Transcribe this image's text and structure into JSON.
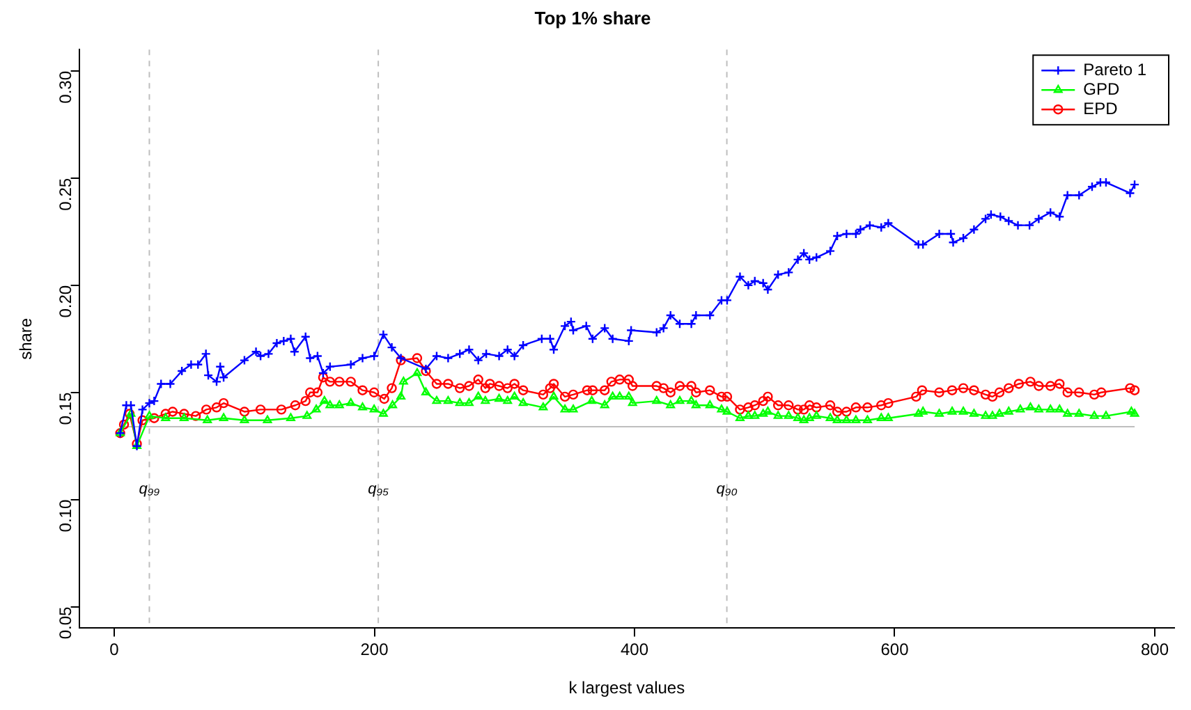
{
  "chart_data": {
    "type": "line",
    "title": "Top 1% share",
    "xlabel": "k largest values",
    "ylabel": "share",
    "xlim": [
      -27,
      815
    ],
    "xticks": [
      0,
      200,
      400,
      600,
      800
    ],
    "ylim": [
      0.04,
      0.31
    ],
    "yticks": [
      {
        "value": 0.05,
        "label": "0.05"
      },
      {
        "value": 0.1,
        "label": "0.10"
      },
      {
        "value": 0.15,
        "label": "0.15"
      },
      {
        "value": 0.2,
        "label": "0.20"
      },
      {
        "value": 0.25,
        "label": "0.25"
      },
      {
        "value": 0.3,
        "label": "0.30"
      }
    ],
    "grid": false,
    "legend": "top right",
    "ref_lines": [
      {
        "axis": "y",
        "value": 0.134,
        "color": "#bebebe",
        "line_style": "solid"
      },
      {
        "axis": "x",
        "value": 27,
        "label": "q₉₉",
        "color": "#bebebe",
        "line_style": "dashed"
      },
      {
        "axis": "x",
        "value": 203,
        "label": "q₉₅",
        "color": "#bebebe",
        "line_style": "dashed"
      },
      {
        "axis": "x",
        "value": 471,
        "label": "q₉₀",
        "color": "#bebebe",
        "line_style": "dashed"
      }
    ],
    "series": [
      {
        "name": "Pareto 1",
        "color": "#0000ff",
        "marker": "cross",
        "x": [
          4.6,
          9.3,
          12.8,
          17.4,
          21.7,
          27,
          30.7,
          36,
          43.1,
          52,
          59.1,
          64.4,
          70.5,
          72.3,
          78.7,
          81.5,
          84.1,
          100.1,
          109,
          112.5,
          118.6,
          125,
          130.3,
          135.7,
          138.6,
          147.1,
          150.6,
          156.3,
          160.6,
          165.9,
          181.9,
          190.9,
          199.8,
          206.9,
          213.4,
          220.4,
          239.6,
          247.9,
          256.7,
          265.7,
          272.8,
          279.9,
          286,
          295.9,
          302.4,
          307.7,
          314.4,
          328.7,
          335.1,
          337.9,
          346.5,
          351.2,
          352.9,
          362.9,
          367.8,
          377.1,
          383.2,
          395.6,
          397.4,
          417,
          422.3,
          427.7,
          434.8,
          443.7,
          447.3,
          458,
          466.9,
          471.2,
          481.1,
          487.5,
          492.5,
          498.9,
          502.5,
          510.4,
          518.5,
          525.6,
          530.2,
          534.5,
          539.9,
          550.5,
          555.9,
          563,
          570.2,
          573.7,
          580.9,
          589.7,
          595.1,
          618.3,
          621.8,
          634.3,
          643.2,
          645,
          652.8,
          661,
          669.9,
          674.1,
          681.3,
          687.7,
          694.8,
          703.7,
          710.8,
          719.8,
          726.8,
          732.9,
          741.8,
          751.8,
          758.2,
          762.5,
          781,
          784.5
        ],
        "values": [
          0.131,
          0.144,
          0.144,
          0.125,
          0.142,
          0.145,
          0.146,
          0.154,
          0.154,
          0.16,
          0.163,
          0.163,
          0.168,
          0.158,
          0.155,
          0.162,
          0.157,
          0.165,
          0.169,
          0.167,
          0.168,
          0.173,
          0.174,
          0.175,
          0.169,
          0.176,
          0.166,
          0.167,
          0.159,
          0.162,
          0.163,
          0.166,
          0.167,
          0.177,
          0.171,
          0.166,
          0.161,
          0.167,
          0.166,
          0.168,
          0.17,
          0.165,
          0.168,
          0.167,
          0.17,
          0.167,
          0.172,
          0.175,
          0.175,
          0.17,
          0.181,
          0.183,
          0.179,
          0.181,
          0.175,
          0.18,
          0.175,
          0.174,
          0.179,
          0.178,
          0.18,
          0.186,
          0.182,
          0.182,
          0.186,
          0.186,
          0.193,
          0.193,
          0.204,
          0.2,
          0.202,
          0.201,
          0.198,
          0.205,
          0.206,
          0.212,
          0.215,
          0.212,
          0.213,
          0.216,
          0.223,
          0.224,
          0.224,
          0.226,
          0.228,
          0.227,
          0.229,
          0.219,
          0.219,
          0.224,
          0.224,
          0.22,
          0.222,
          0.226,
          0.231,
          0.233,
          0.232,
          0.23,
          0.228,
          0.228,
          0.231,
          0.234,
          0.232,
          0.242,
          0.242,
          0.246,
          0.248,
          0.248,
          0.243,
          0.247
        ]
      },
      {
        "name": "GPD",
        "color": "#00ff00",
        "marker": "triangle",
        "x": [
          4.6,
          12.8,
          17.4,
          27,
          39.5,
          53.7,
          71.6,
          84.1,
          100.1,
          117.8,
          135.7,
          148.2,
          155.3,
          161.6,
          165.9,
          173.1,
          181.9,
          190.9,
          199.8,
          206.9,
          214,
          220.4,
          222.4,
          232.9,
          239.6,
          247.9,
          256.7,
          265.7,
          272.8,
          279.9,
          285.3,
          295.9,
          302.4,
          307.7,
          314.4,
          329.8,
          337.9,
          346.5,
          352.9,
          367.1,
          377.1,
          383.2,
          388.6,
          395.6,
          398.5,
          417,
          427.7,
          434.8,
          443.7,
          447.3,
          458,
          466.9,
          471.2,
          481.1,
          487.5,
          492.5,
          498.9,
          502.5,
          510.4,
          518.5,
          525.6,
          530.2,
          534.5,
          539.9,
          550.5,
          555.9,
          563,
          570.2,
          579.1,
          589.7,
          595.1,
          618.3,
          621.8,
          634.3,
          644.2,
          652.8,
          661,
          669.9,
          675.2,
          680.6,
          687.7,
          696.6,
          704.4,
          710.8,
          719.8,
          726.8,
          732.9,
          741.8,
          753.5,
          762.5,
          782,
          784.5
        ],
        "values": [
          0.131,
          0.14,
          0.125,
          0.139,
          0.138,
          0.138,
          0.137,
          0.138,
          0.137,
          0.137,
          0.138,
          0.139,
          0.142,
          0.146,
          0.144,
          0.144,
          0.145,
          0.143,
          0.142,
          0.14,
          0.144,
          0.148,
          0.155,
          0.159,
          0.15,
          0.146,
          0.146,
          0.145,
          0.145,
          0.148,
          0.146,
          0.147,
          0.146,
          0.148,
          0.145,
          0.143,
          0.148,
          0.142,
          0.142,
          0.146,
          0.144,
          0.148,
          0.148,
          0.148,
          0.145,
          0.146,
          0.144,
          0.146,
          0.146,
          0.144,
          0.144,
          0.142,
          0.141,
          0.138,
          0.139,
          0.139,
          0.14,
          0.141,
          0.139,
          0.139,
          0.138,
          0.137,
          0.138,
          0.139,
          0.138,
          0.137,
          0.137,
          0.137,
          0.137,
          0.138,
          0.138,
          0.14,
          0.141,
          0.14,
          0.141,
          0.141,
          0.14,
          0.139,
          0.139,
          0.14,
          0.141,
          0.142,
          0.143,
          0.142,
          0.142,
          0.142,
          0.14,
          0.14,
          0.139,
          0.139,
          0.141,
          0.14
        ]
      },
      {
        "name": "EPD",
        "color": "#ff0000",
        "marker": "circle",
        "x": [
          4.6,
          7.5,
          11.8,
          17.4,
          21.7,
          30.7,
          39.5,
          44.9,
          53.7,
          62.7,
          70.8,
          78.7,
          84.1,
          100.1,
          112.5,
          128.5,
          139.2,
          147.1,
          150.6,
          156.3,
          160.6,
          165.9,
          173.1,
          181.9,
          190.9,
          199.8,
          207.6,
          213.4,
          220.4,
          232.9,
          239.6,
          247.9,
          256.7,
          265.7,
          272.8,
          279.9,
          285.3,
          288.8,
          295.9,
          302.4,
          307.7,
          314.4,
          329.8,
          335.1,
          337.9,
          346.5,
          352.9,
          363.6,
          367.8,
          377.1,
          382.2,
          388.6,
          395.6,
          398.5,
          417,
          422.3,
          427.7,
          434.8,
          443.7,
          447.3,
          458,
          466.9,
          471.2,
          481.1,
          487.5,
          492.5,
          498.9,
          502.5,
          510.4,
          518.5,
          525.6,
          530.2,
          534.5,
          539.9,
          550.5,
          555.9,
          563,
          570.2,
          579.1,
          589.7,
          595.1,
          616.5,
          621.1,
          634.3,
          644.2,
          652.8,
          661,
          669.9,
          675.2,
          680.6,
          687.7,
          695.5,
          704.4,
          710.8,
          719.8,
          726.8,
          732.9,
          741.8,
          753.5,
          758.9,
          781,
          784.5
        ],
        "values": [
          0.131,
          0.135,
          0.14,
          0.126,
          0.137,
          0.138,
          0.14,
          0.141,
          0.14,
          0.139,
          0.142,
          0.143,
          0.145,
          0.141,
          0.142,
          0.142,
          0.144,
          0.146,
          0.15,
          0.15,
          0.157,
          0.155,
          0.155,
          0.155,
          0.151,
          0.15,
          0.147,
          0.152,
          0.165,
          0.166,
          0.16,
          0.154,
          0.154,
          0.152,
          0.153,
          0.156,
          0.152,
          0.154,
          0.153,
          0.152,
          0.154,
          0.151,
          0.149,
          0.152,
          0.154,
          0.148,
          0.149,
          0.151,
          0.151,
          0.151,
          0.155,
          0.156,
          0.156,
          0.153,
          0.153,
          0.152,
          0.15,
          0.153,
          0.153,
          0.15,
          0.151,
          0.148,
          0.148,
          0.142,
          0.143,
          0.144,
          0.146,
          0.148,
          0.144,
          0.144,
          0.142,
          0.142,
          0.144,
          0.143,
          0.144,
          0.141,
          0.141,
          0.143,
          0.143,
          0.144,
          0.145,
          0.148,
          0.151,
          0.15,
          0.151,
          0.152,
          0.151,
          0.149,
          0.148,
          0.15,
          0.152,
          0.154,
          0.155,
          0.153,
          0.153,
          0.154,
          0.15,
          0.15,
          0.149,
          0.15,
          0.152,
          0.151
        ]
      }
    ]
  }
}
